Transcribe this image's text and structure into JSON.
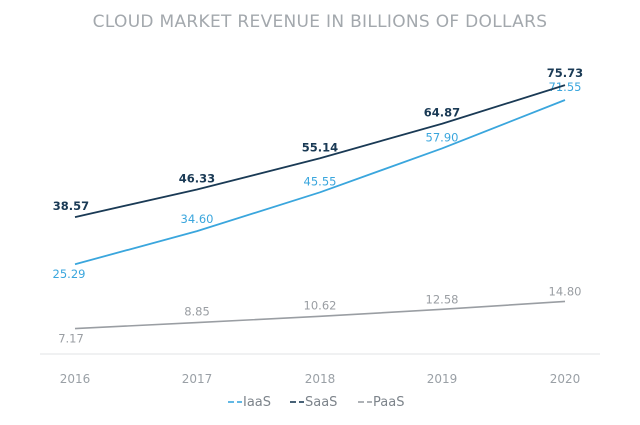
{
  "chart_data": {
    "type": "line",
    "title": "CLOUD MARKET REVENUE IN BILLIONS OF DOLLARS",
    "categories": [
      "2016",
      "2017",
      "2018",
      "2019",
      "2020"
    ],
    "series": [
      {
        "name": "IaaS",
        "color": "#3aa6dd",
        "values": [
          25.29,
          34.6,
          45.55,
          57.9,
          71.55
        ],
        "labels": [
          "25.29",
          "34.60",
          "45.55",
          "57.90",
          "71.55"
        ]
      },
      {
        "name": "SaaS",
        "color": "#1a3a55",
        "values": [
          38.57,
          46.33,
          55.14,
          64.87,
          75.73
        ],
        "labels": [
          "38.57",
          "46.33",
          "55.14",
          "64.87",
          "75.73"
        ]
      },
      {
        "name": "PaaS",
        "color": "#9a9ea3",
        "values": [
          7.17,
          8.85,
          10.62,
          12.58,
          14.8
        ],
        "labels": [
          "7.17",
          "8.85",
          "10.62",
          "12.58",
          "14.80"
        ]
      }
    ],
    "ylim": [
      0,
      80
    ],
    "xlabel": "",
    "ylabel": "",
    "grid": false,
    "legend": "bottom"
  }
}
